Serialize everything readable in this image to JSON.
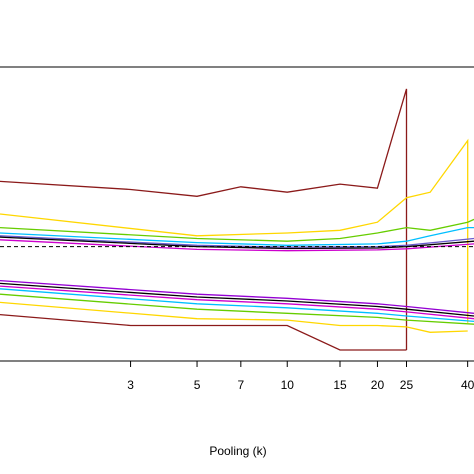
{
  "chart_data": {
    "type": "line",
    "xlabel": "Pooling (k)",
    "ylabel": "",
    "x_scale": "log",
    "xlim": [
      1.1,
      42
    ],
    "ylim": [
      0,
      1
    ],
    "x_ticks": [
      3,
      5,
      7,
      10,
      15,
      20,
      25,
      40
    ],
    "reference_line": {
      "y": 0.38,
      "style": "dashed",
      "color": "#000000"
    },
    "grid": false,
    "series": [
      {
        "color": "#8b1a1a",
        "x": [
          1.1,
          3,
          5,
          7,
          10,
          15,
          20,
          25,
          25
        ],
        "y": [
          0.62,
          0.59,
          0.565,
          0.6,
          0.58,
          0.61,
          0.595,
          0.96,
          0.0
        ]
      },
      {
        "color": "#ffd700",
        "x": [
          1.1,
          5,
          10,
          15,
          20,
          25,
          30,
          40,
          40
        ],
        "y": [
          0.5,
          0.42,
          0.43,
          0.44,
          0.47,
          0.56,
          0.58,
          0.77,
          0.1
        ]
      },
      {
        "color": "#66cd00",
        "x": [
          1.1,
          5,
          10,
          15,
          20,
          25,
          30,
          40,
          42
        ],
        "y": [
          0.45,
          0.41,
          0.4,
          0.41,
          0.43,
          0.45,
          0.44,
          0.47,
          0.48
        ]
      },
      {
        "color": "#00bfff",
        "x": [
          1.1,
          5,
          10,
          20,
          25,
          30,
          40,
          42
        ],
        "y": [
          0.43,
          0.395,
          0.385,
          0.39,
          0.4,
          0.42,
          0.45,
          0.45
        ]
      },
      {
        "color": "#6a5acd",
        "x": [
          1.1,
          5,
          10,
          20,
          25,
          42
        ],
        "y": [
          0.42,
          0.385,
          0.378,
          0.38,
          0.385,
          0.41
        ]
      },
      {
        "color": "#000000",
        "x": [
          1.1,
          5,
          10,
          20,
          25,
          42
        ],
        "y": [
          0.415,
          0.38,
          0.373,
          0.375,
          0.38,
          0.4
        ]
      },
      {
        "color": "#cd00cd",
        "x": [
          1.1,
          5,
          10,
          20,
          25,
          42
        ],
        "y": [
          0.405,
          0.37,
          0.365,
          0.368,
          0.372,
          0.39
        ]
      },
      {
        "color": "#9400d3",
        "x": [
          1.1,
          5,
          10,
          20,
          25,
          42
        ],
        "y": [
          0.255,
          0.205,
          0.19,
          0.17,
          0.16,
          0.135
        ]
      },
      {
        "color": "#000000",
        "x": [
          1.1,
          5,
          10,
          20,
          25,
          42
        ],
        "y": [
          0.245,
          0.195,
          0.18,
          0.16,
          0.15,
          0.125
        ]
      },
      {
        "color": "#cd00cd",
        "x": [
          1.1,
          5,
          10,
          20,
          25,
          42
        ],
        "y": [
          0.235,
          0.185,
          0.17,
          0.15,
          0.14,
          0.115
        ]
      },
      {
        "color": "#00bfff",
        "x": [
          1.1,
          5,
          10,
          20,
          25,
          42
        ],
        "y": [
          0.225,
          0.17,
          0.155,
          0.135,
          0.125,
          0.105
        ]
      },
      {
        "color": "#66cd00",
        "x": [
          1.1,
          5,
          10,
          20,
          25,
          42
        ],
        "y": [
          0.205,
          0.15,
          0.135,
          0.12,
          0.11,
          0.095
        ]
      },
      {
        "color": "#ffd700",
        "x": [
          1.1,
          5,
          10,
          15,
          20,
          25,
          30,
          40
        ],
        "y": [
          0.175,
          0.115,
          0.11,
          0.09,
          0.09,
          0.085,
          0.065,
          0.07
        ]
      },
      {
        "color": "#8b1a1a",
        "x": [
          1.1,
          3,
          5,
          7,
          10,
          15,
          20,
          25
        ],
        "y": [
          0.13,
          0.09,
          0.09,
          0.09,
          0.09,
          0.0,
          0.0,
          0.0
        ]
      }
    ]
  }
}
